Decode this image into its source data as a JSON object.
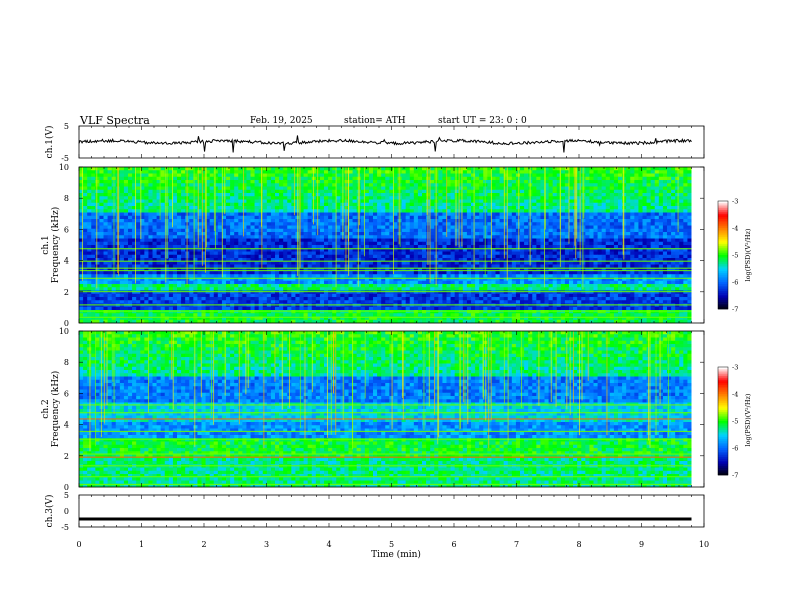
{
  "header": {
    "title": "VLF  Spectra",
    "date": "Feb. 19, 2025",
    "station": "station= ATH",
    "start_ut": "start  UT  =    23: 0   : 0"
  },
  "axes": {
    "ch1_label": "ch.1(V)",
    "ch3_label": "ch.3(V)",
    "ch1_spec_label": "ch.1",
    "ch2_spec_label": "ch.2",
    "freq_label": "Frequency  (kHz)",
    "time_label": "Time  (min)",
    "colorbar_label": "log(PSD)(V²/Hz)"
  },
  "chart_data": [
    {
      "type": "line",
      "name": "ch1-timeseries",
      "ylabel": "ch.1(V)",
      "ylim": [
        -5,
        5
      ],
      "yticks": [
        "5",
        "-5"
      ],
      "xlim": [
        0,
        10
      ],
      "baseline": 0
    },
    {
      "type": "heatmap",
      "name": "ch1-spectrogram",
      "ylabel": "Frequency  (kHz)",
      "ylim": [
        0,
        10
      ],
      "yticks": [
        "10",
        "8",
        "6",
        "4",
        "2",
        "0"
      ],
      "xlim": [
        0,
        10
      ],
      "data_end_min": 9.8,
      "colorbar": {
        "range": [
          -7,
          -3
        ],
        "ticks": [
          "-3",
          "-4",
          "-5",
          "-6",
          "-7"
        ]
      }
    },
    {
      "type": "heatmap",
      "name": "ch2-spectrogram",
      "ylabel": "Frequency  (kHz)",
      "ylim": [
        0,
        10
      ],
      "yticks": [
        "10",
        "8",
        "6",
        "4",
        "2",
        "0"
      ],
      "xlim": [
        0,
        10
      ],
      "data_end_min": 9.8,
      "colorbar": {
        "range": [
          -7,
          -3
        ],
        "ticks": [
          "-3",
          "-4",
          "-5",
          "-6",
          "-7"
        ]
      }
    },
    {
      "type": "line",
      "name": "ch3-timeseries",
      "ylabel": "ch.3(V)",
      "ylim": [
        -5,
        5
      ],
      "yticks": [
        "5",
        "0",
        "-5"
      ],
      "xlim": [
        0,
        10
      ],
      "baseline": -2.5,
      "xlabel": "Time  (min)",
      "xticks": [
        "0",
        "1",
        "2",
        "3",
        "4",
        "5",
        "6",
        "7",
        "8",
        "9",
        "10"
      ]
    }
  ],
  "colors": {
    "colormap": [
      "#000000",
      "#0000b4",
      "#0064ff",
      "#00d2ff",
      "#00ff00",
      "#ffff00",
      "#ff8000",
      "#ff0000",
      "#ffffff"
    ],
    "trace": "#000000",
    "axis": "#000000"
  }
}
